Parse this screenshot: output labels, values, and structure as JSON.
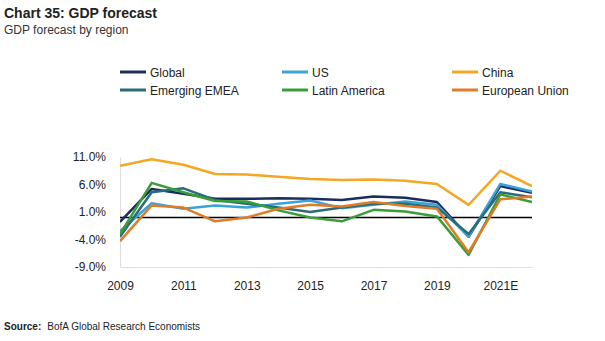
{
  "chart_data": {
    "type": "line",
    "title": "Chart 35: GDP forecast",
    "subtitle": "GDP forecast by region",
    "source_label": "Source:",
    "source": "BofA Global Research Economists",
    "x": [
      2009,
      2010,
      2011,
      2012,
      2013,
      2014,
      2015,
      2016,
      2017,
      2018,
      2019,
      2020,
      2021,
      2022
    ],
    "xlim": [
      2009,
      2022
    ],
    "xticks": [
      2009,
      2011,
      2013,
      2015,
      2017,
      2019,
      {
        "value": 2021,
        "label": "2021E"
      }
    ],
    "ylim": [
      -9,
      11
    ],
    "yticks": [
      {
        "value": -9,
        "label": "-9.0%"
      },
      {
        "value": -4,
        "label": "-4.0%"
      },
      {
        "value": 1,
        "label": "1.0%"
      },
      {
        "value": 6,
        "label": "6.0%"
      },
      {
        "value": 11,
        "label": "11.0%"
      }
    ],
    "grid": false,
    "legend": "top",
    "series": [
      {
        "name": "Global",
        "color": "#1b2d5c",
        "values": [
          -0.8,
          5.2,
          4.3,
          3.4,
          3.4,
          3.5,
          3.4,
          3.2,
          3.8,
          3.6,
          2.8,
          -3.5,
          5.7,
          4.5
        ]
      },
      {
        "name": "US",
        "color": "#3aa3da",
        "values": [
          -2.5,
          2.6,
          1.6,
          2.2,
          1.8,
          2.5,
          3.1,
          1.7,
          2.3,
          2.9,
          2.3,
          -3.5,
          6.1,
          4.7
        ]
      },
      {
        "name": "China",
        "color": "#f5a623",
        "values": [
          9.4,
          10.6,
          9.6,
          7.9,
          7.8,
          7.4,
          7.0,
          6.8,
          6.9,
          6.7,
          6.1,
          2.3,
          8.5,
          5.7
        ]
      },
      {
        "name": "Emerging EMEA",
        "color": "#2c6b7b",
        "values": [
          -3.5,
          4.6,
          5.3,
          3.2,
          2.5,
          1.8,
          1.0,
          1.8,
          2.5,
          2.5,
          1.8,
          -3.0,
          4.6,
          3.7
        ]
      },
      {
        "name": "Latin America",
        "color": "#3a9d3a",
        "values": [
          -3.0,
          6.3,
          4.6,
          3.0,
          2.9,
          1.3,
          0.0,
          -0.7,
          1.4,
          1.1,
          0.2,
          -6.8,
          4.2,
          2.8
        ]
      },
      {
        "name": "European Union",
        "color": "#e07b28",
        "values": [
          -4.3,
          2.2,
          1.8,
          -0.7,
          0.0,
          1.6,
          2.3,
          2.0,
          2.8,
          2.1,
          1.6,
          -6.3,
          3.3,
          3.8
        ]
      }
    ]
  }
}
